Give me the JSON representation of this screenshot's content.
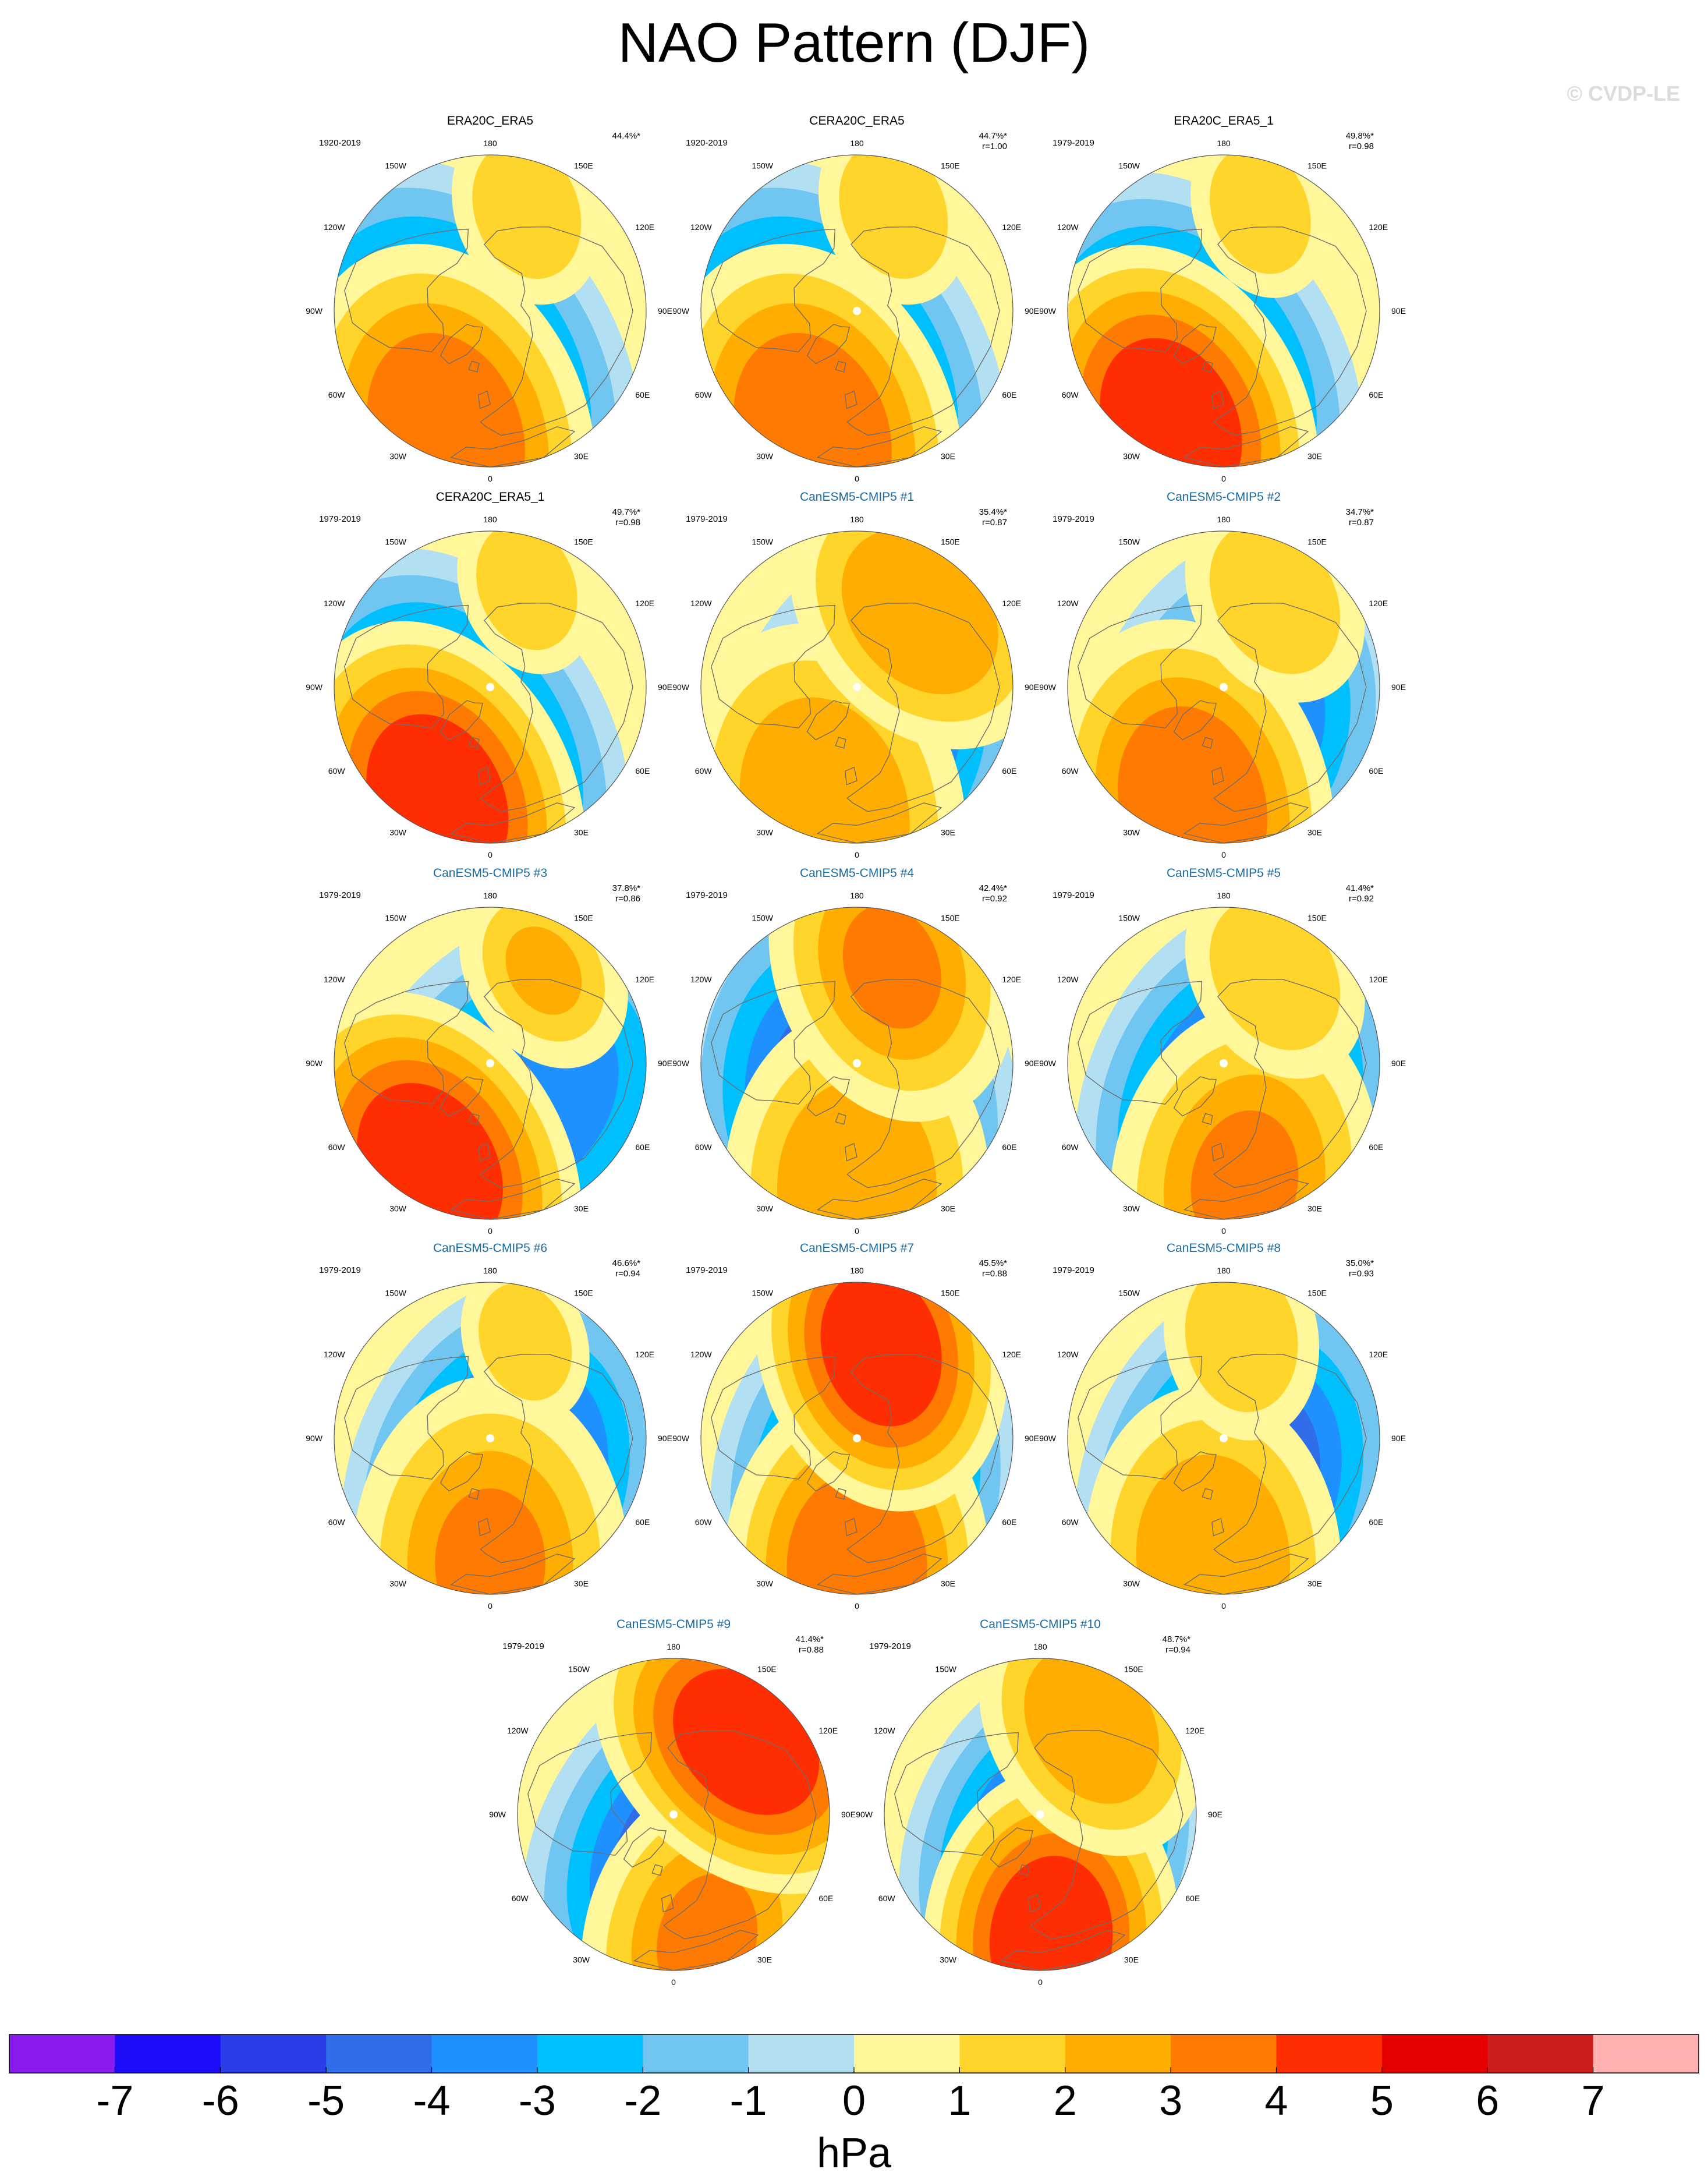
{
  "title": "NAO Pattern (DJF)",
  "copyright": "© CVDP-LE",
  "lon_labels": [
    "180",
    "150E",
    "120E",
    "90E",
    "60E",
    "30E",
    "0",
    "30W",
    "60W",
    "90W",
    "120W",
    "150W"
  ],
  "colors": {
    "obs_title": "#000000",
    "model_title": "#1a6aa0",
    "coast": "#6e6e6e",
    "land_marker": "#ffffff"
  },
  "panels": [
    {
      "title": "ERA20C_ERA5",
      "kind": "obs",
      "period": "1920-2019",
      "pct": "44.4%*",
      "r": "",
      "marker": false,
      "blobs": [
        {
          "lon": 330,
          "colat": 36,
          "size": 68,
          "value": -4.2
        },
        {
          "lon": 340,
          "colat": 58,
          "size": 56,
          "value": 3.2
        },
        {
          "lon": 160,
          "colat": 48,
          "size": 28,
          "value": 1.5
        }
      ]
    },
    {
      "title": "CERA20C_ERA5",
      "kind": "obs",
      "period": "1920-2019",
      "pct": "44.7%*",
      "r": "r=1.00",
      "marker": true,
      "blobs": [
        {
          "lon": 330,
          "colat": 36,
          "size": 68,
          "value": -4.2
        },
        {
          "lon": 340,
          "colat": 58,
          "size": 56,
          "value": 3.2
        },
        {
          "lon": 160,
          "colat": 48,
          "size": 28,
          "value": 1.5
        }
      ]
    },
    {
      "title": "ERA20C_ERA5_1",
      "kind": "obs",
      "period": "1979-2019",
      "pct": "49.8%*",
      "r": "r=0.98",
      "marker": false,
      "blobs": [
        {
          "lon": 330,
          "colat": 36,
          "size": 64,
          "value": -4.8
        },
        {
          "lon": 335,
          "colat": 56,
          "size": 54,
          "value": 4.4
        },
        {
          "lon": 160,
          "colat": 48,
          "size": 26,
          "value": 1.4
        }
      ]
    },
    {
      "title": "CERA20C_ERA5_1",
      "kind": "obs",
      "period": "1979-2019",
      "pct": "49.7%*",
      "r": "r=0.98",
      "marker": true,
      "blobs": [
        {
          "lon": 330,
          "colat": 36,
          "size": 64,
          "value": -4.8
        },
        {
          "lon": 335,
          "colat": 56,
          "size": 54,
          "value": 4.4
        },
        {
          "lon": 160,
          "colat": 48,
          "size": 26,
          "value": 1.4
        }
      ]
    },
    {
      "title": "CanESM5-CMIP5 #1",
      "kind": "model",
      "period": "1979-2019",
      "pct": "35.4%*",
      "r": "r=0.87",
      "marker": true,
      "blobs": [
        {
          "lon": 20,
          "colat": 26,
          "size": 60,
          "value": -3.2
        },
        {
          "lon": 345,
          "colat": 56,
          "size": 54,
          "value": 2.6
        },
        {
          "lon": 140,
          "colat": 44,
          "size": 44,
          "value": 2.4
        }
      ]
    },
    {
      "title": "CanESM5-CMIP5 #2",
      "kind": "model",
      "period": "1979-2019",
      "pct": "34.7%*",
      "r": "r=0.87",
      "marker": true,
      "blobs": [
        {
          "lon": 20,
          "colat": 22,
          "size": 60,
          "value": -3.6
        },
        {
          "lon": 345,
          "colat": 54,
          "size": 54,
          "value": 3.2
        },
        {
          "lon": 150,
          "colat": 46,
          "size": 32,
          "value": 1.8
        }
      ]
    },
    {
      "title": "CanESM5-CMIP5 #3",
      "kind": "model",
      "period": "1979-2019",
      "pct": "37.8%*",
      "r": "r=0.86",
      "marker": true,
      "blobs": [
        {
          "lon": 40,
          "colat": 22,
          "size": 62,
          "value": -3.4
        },
        {
          "lon": 330,
          "colat": 54,
          "size": 54,
          "value": 4.2
        },
        {
          "lon": 150,
          "colat": 48,
          "size": 30,
          "value": 2.0
        }
      ]
    },
    {
      "title": "CanESM5-CMIP5 #4",
      "kind": "model",
      "period": "1979-2019",
      "pct": "42.4%*",
      "r": "r=0.92",
      "marker": true,
      "blobs": [
        {
          "lon": 350,
          "colat": 20,
          "size": 66,
          "value": -4.4
        },
        {
          "lon": 0,
          "colat": 56,
          "size": 52,
          "value": 2.8
        },
        {
          "lon": 160,
          "colat": 46,
          "size": 46,
          "value": 3.0
        }
      ]
    },
    {
      "title": "CanESM5-CMIP5 #5",
      "kind": "model",
      "period": "1979-2019",
      "pct": "41.4%*",
      "r": "r=0.92",
      "marker": true,
      "blobs": [
        {
          "lon": 20,
          "colat": 22,
          "size": 62,
          "value": -4.2
        },
        {
          "lon": 10,
          "colat": 54,
          "size": 52,
          "value": 3.0
        },
        {
          "lon": 150,
          "colat": 46,
          "size": 32,
          "value": 1.8
        }
      ]
    },
    {
      "title": "CanESM5-CMIP5 #6",
      "kind": "model",
      "period": "1979-2019",
      "pct": "46.6%*",
      "r": "r=0.94",
      "marker": true,
      "blobs": [
        {
          "lon": 20,
          "colat": 22,
          "size": 62,
          "value": -4.8
        },
        {
          "lon": 0,
          "colat": 56,
          "size": 54,
          "value": 3.0
        },
        {
          "lon": 160,
          "colat": 46,
          "size": 24,
          "value": 1.2
        }
      ]
    },
    {
      "title": "CanESM5-CMIP5 #7",
      "kind": "model",
      "period": "1979-2019",
      "pct": "45.5%*",
      "r": "r=0.88",
      "marker": true,
      "blobs": [
        {
          "lon": 10,
          "colat": 22,
          "size": 60,
          "value": -4.6
        },
        {
          "lon": 0,
          "colat": 58,
          "size": 52,
          "value": 3.2
        },
        {
          "lon": 165,
          "colat": 42,
          "size": 48,
          "value": 4.2
        }
      ]
    },
    {
      "title": "CanESM5-CMIP5 #8",
      "kind": "model",
      "period": "1979-2019",
      "pct": "35.0%*",
      "r": "r=0.93",
      "marker": true,
      "blobs": [
        {
          "lon": 20,
          "colat": 22,
          "size": 62,
          "value": -4.8
        },
        {
          "lon": 355,
          "colat": 54,
          "size": 50,
          "value": 2.6
        },
        {
          "lon": 170,
          "colat": 46,
          "size": 30,
          "value": 1.4
        }
      ]
    },
    {
      "title": "CanESM5-CMIP5 #9",
      "kind": "model",
      "period": "1979-2019",
      "pct": "41.4%*",
      "r": "r=0.88",
      "marker": true,
      "blobs": [
        {
          "lon": 30,
          "colat": 20,
          "size": 62,
          "value": -4.8
        },
        {
          "lon": 15,
          "colat": 58,
          "size": 48,
          "value": 3.0
        },
        {
          "lon": 135,
          "colat": 46,
          "size": 50,
          "value": 4.2
        }
      ]
    },
    {
      "title": "CanESM5-CMIP5 #10",
      "kind": "model",
      "period": "1979-2019",
      "pct": "48.7%*",
      "r": "r=0.94",
      "marker": true,
      "blobs": [
        {
          "lon": 20,
          "colat": 18,
          "size": 58,
          "value": -5.0
        },
        {
          "lon": 5,
          "colat": 56,
          "size": 50,
          "value": 4.6
        },
        {
          "lon": 150,
          "colat": 46,
          "size": 40,
          "value": 2.6
        }
      ]
    }
  ],
  "colorbar": {
    "unit": "hPa",
    "ticks": [
      "-7",
      "-6",
      "-5",
      "-4",
      "-3",
      "-2",
      "-1",
      "0",
      "1",
      "2",
      "3",
      "4",
      "5",
      "6",
      "7"
    ],
    "colors": [
      "#8a1cf0",
      "#1c0cf7",
      "#2a3de8",
      "#2f6ee8",
      "#1e90ff",
      "#00bfff",
      "#71c6f1",
      "#b2e0f2",
      "#fff799",
      "#ffd52b",
      "#ffad00",
      "#ff7a00",
      "#ff2e00",
      "#e60000",
      "#cc1c1c",
      "#ffb0b0"
    ],
    "background_value": 0.5
  }
}
